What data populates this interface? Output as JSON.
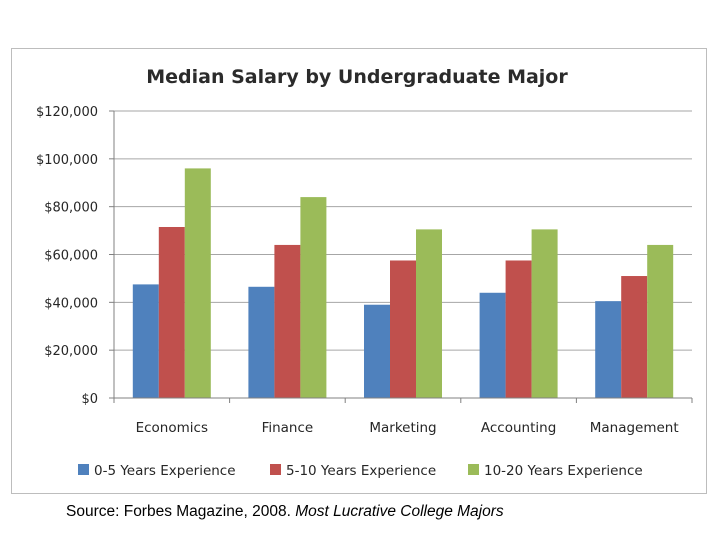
{
  "chart_data": {
    "type": "bar",
    "title": "Median Salary by Undergraduate Major",
    "xlabel": "",
    "ylabel": "",
    "categories": [
      "Economics",
      "Finance",
      "Marketing",
      "Accounting",
      "Management"
    ],
    "series": [
      {
        "name": "0-5 Years Experience",
        "color": "#4f81bd",
        "values": [
          47500,
          46500,
          39000,
          44000,
          40500
        ]
      },
      {
        "name": "5-10 Years Experience",
        "color": "#c0504d",
        "values": [
          71500,
          64000,
          57500,
          57500,
          51000
        ]
      },
      {
        "name": "10-20 Years Experience",
        "color": "#9bbb59",
        "values": [
          96000,
          84000,
          70500,
          70500,
          64000
        ]
      }
    ],
    "ylim": [
      0,
      120000
    ],
    "yticks": [
      0,
      20000,
      40000,
      60000,
      80000,
      100000,
      120000
    ],
    "ytick_labels": [
      "$0",
      "$20,000",
      "$40,000",
      "$60,000",
      "$80,000",
      "$100,000",
      "$120,000"
    ],
    "grid": true,
    "legend_position": "bottom"
  },
  "source": {
    "text": "Source: Forbes Magazine, 2008. ",
    "title": "Most Lucrative College Majors"
  }
}
